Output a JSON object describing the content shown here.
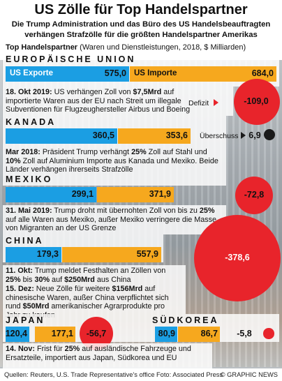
{
  "title": "US Zölle für Top Handelspartner",
  "subtitle_line1": "Die Trump Administration und das Büro des US Handelsbeauftragten",
  "subtitle_line2": "verhängen Strafzölle für die größten Handelspartner Amerikas",
  "note_bold": "Top Handelspartner",
  "note_rest": " (Waren und Dienstleistungen, 2018, $ Milliarden)",
  "legend": {
    "exports": "US Exporte",
    "imports": "US Importe",
    "deficit": "Defizit",
    "surplus": "Überschuss"
  },
  "sections": {
    "eu": {
      "country": "EUROPÄISCHE UNION",
      "p1_pre": "18. Okt 2019:",
      "p1_a": " US verhängen Zoll von ",
      "p1_b": "$7,5Mrd",
      "p1_c": " auf importierte Waren aus der EU nach Streit um illegale Subventionen für Flugzeughersteller Airbus und Boeing"
    },
    "ca": {
      "country": "KANADA",
      "p1_pre": "Mar 2018:",
      "p1_a": " Präsident Trump verhängt ",
      "p1_b": "25%",
      "p1_c": " Zoll auf Stahl und",
      "p1_d": "10%",
      "p1_e": " Zoll auf Aluminium Importe aus Kanada und Mexiko. Beide Länder verhängen ihrerseits Strafzölle"
    },
    "mx": {
      "country": "MEXIKO",
      "p1_pre": "31. Mai 2019:",
      "p1_a": " Trump droht mit übernohten Zoll von bis zu ",
      "p1_b": "25%",
      "p1_c": " auf alle Waren aus Mexiko, außer Mexiko verringere die Masse von Migranten an der US Grenze"
    },
    "cn": {
      "country": "CHINA",
      "p1_pre": "11. Okt:",
      "p1_a": " Trump meldet Festhalten an Zöllen von ",
      "p1_b": "25%",
      "p1_c": " bis ",
      "p1_d": "30%",
      "p1_e": " auf ",
      "p1_f": "$250Mrd",
      "p1_g": " aus China",
      "p2_pre": "15. Dez:",
      "p2_a": " Neue Zölle für weitere ",
      "p2_b": "$156Mrd",
      "p2_c": " auf chinesische Waren, außer China verpflichtet sich rund ",
      "p2_d": "$50Mrd",
      "p2_e": " amerikanischer Agrarprodukte pro Jahr zu kaufen"
    },
    "jp": {
      "country": "JAPAN"
    },
    "kr": {
      "country": "SÜDKOREA"
    },
    "end": {
      "p1_pre": "14. Nov:",
      "p1_a": " Frist für ",
      "p1_b": "25%",
      "p1_c": " auf ausländische Fahrzeuge und Ersatzteile, importiert aus Japan, Südkorea und EU"
    }
  },
  "chart_data": {
    "type": "bar",
    "categories": [
      "EUROPÄISCHE UNION",
      "KANADA",
      "MEXIKO",
      "CHINA",
      "JAPAN",
      "SÜDKOREA"
    ],
    "series": [
      {
        "name": "US Exporte",
        "values": [
          575.0,
          360.5,
          299.1,
          179.3,
          120.4,
          80.9
        ]
      },
      {
        "name": "US Importe",
        "values": [
          684.0,
          353.6,
          371.9,
          557.9,
          177.1,
          86.7
        ]
      }
    ],
    "balance": [
      -109.0,
      6.9,
      -72.8,
      -378.6,
      -56.7,
      -5.8
    ],
    "labels": {
      "exports": [
        "575,0",
        "360,5",
        "299,1",
        "179,3",
        "120,4",
        "80,9"
      ],
      "imports": [
        "684,0",
        "353,6",
        "371,9",
        "557,9",
        "177,1",
        "86,7"
      ],
      "balance": [
        "-109,0",
        "6,9",
        "-72,8",
        "-378,6",
        "-56,7",
        "-5,8"
      ]
    },
    "colors": {
      "exports": "#1b9ee3",
      "imports": "#f6a81e",
      "deficit": "#e8242b",
      "surplus": "#1a1a1a"
    }
  },
  "footer": {
    "sources": "Quellen: Reuters, U.S. Trade Representative's office",
    "photo": "Foto: Associated Press",
    "credit": "© GRAPHIC NEWS"
  }
}
